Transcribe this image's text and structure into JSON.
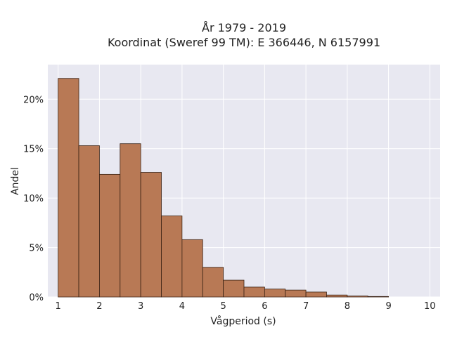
{
  "chart_data": {
    "type": "bar",
    "title_line1": "År 1979 - 2019",
    "title_line2": "Koordinat (Sweref 99 TM): E 366446, N 6157991",
    "xlabel": "Vågperiod (s)",
    "ylabel": "Andel",
    "xlim": [
      0.75,
      10.25
    ],
    "ylim": [
      0,
      0.235
    ],
    "x_ticks": [
      "1",
      "2",
      "3",
      "4",
      "5",
      "6",
      "7",
      "8",
      "9",
      "10"
    ],
    "y_ticks": [
      "0%",
      "5%",
      "10%",
      "15%",
      "20%"
    ],
    "bin_width": 0.5,
    "bins": [
      {
        "start": 1.0,
        "value": 0.221
      },
      {
        "start": 1.5,
        "value": 0.153
      },
      {
        "start": 2.0,
        "value": 0.124
      },
      {
        "start": 2.5,
        "value": 0.155
      },
      {
        "start": 3.0,
        "value": 0.126
      },
      {
        "start": 3.5,
        "value": 0.082
      },
      {
        "start": 4.0,
        "value": 0.058
      },
      {
        "start": 4.5,
        "value": 0.03
      },
      {
        "start": 5.0,
        "value": 0.017
      },
      {
        "start": 5.5,
        "value": 0.01
      },
      {
        "start": 6.0,
        "value": 0.008
      },
      {
        "start": 6.5,
        "value": 0.007
      },
      {
        "start": 7.0,
        "value": 0.005
      },
      {
        "start": 7.5,
        "value": 0.002
      },
      {
        "start": 8.0,
        "value": 0.001
      },
      {
        "start": 8.5,
        "value": 0.0005
      }
    ],
    "grid": true,
    "colors": {
      "bar_fill": "#b87955",
      "bar_stroke": "#3a2214",
      "plot_bg": "#e8e8f1",
      "grid": "#ffffff"
    }
  }
}
